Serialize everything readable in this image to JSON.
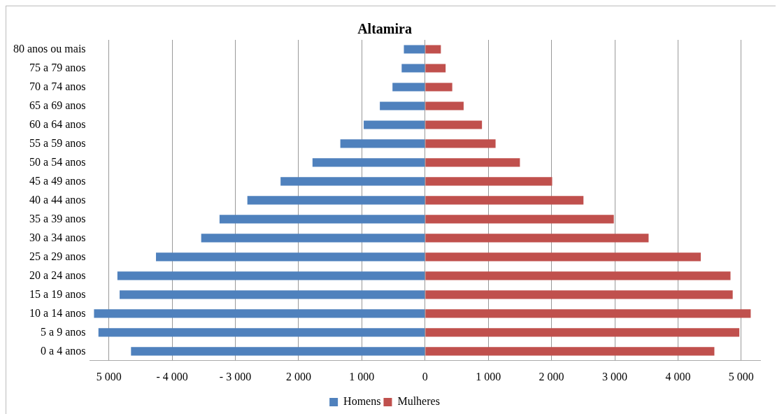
{
  "chart_data": {
    "type": "bar",
    "orientation": "horizontal",
    "stacked": true,
    "title": "Altamira",
    "categories": [
      "80 anos ou mais",
      "75 a 79 anos",
      "70 a 74 anos",
      "65 a 69 anos",
      "60 a 64 anos",
      "55 a 59 anos",
      "50 a 54 anos",
      "45 a 49 anos",
      "40 a 44 anos",
      "35 a 39 anos",
      "30 a 34 anos",
      "25 a 29 anos",
      "20 a 24 anos",
      "15 a 19 anos",
      "10 a 14 anos",
      "5 a 9 anos",
      "0 a 4 anos"
    ],
    "series": [
      {
        "name": "Homens",
        "color": "#4f81bd",
        "values": [
          -335,
          -370,
          -515,
          -715,
          -970,
          -1340,
          -1780,
          -2285,
          -2810,
          -3250,
          -3540,
          -4255,
          -4865,
          -4830,
          -5235,
          -5165,
          -4650
        ]
      },
      {
        "name": "Mulheres",
        "color": "#c0504d",
        "values": [
          250,
          325,
          430,
          610,
          900,
          1115,
          1500,
          2010,
          2505,
          2985,
          3535,
          4360,
          4830,
          4865,
          5150,
          4970,
          4575
        ]
      }
    ],
    "xlim": [
      -5300,
      5300
    ],
    "xticks": [
      {
        "value": -5000,
        "label": "5 000"
      },
      {
        "value": -4000,
        "label": "- 4 000"
      },
      {
        "value": -3000,
        "label": "- 3 000"
      },
      {
        "value": -2000,
        "label": "2 000"
      },
      {
        "value": -1000,
        "label": "1 000"
      },
      0,
      {
        "value": 1000,
        "label": "1 000"
      },
      {
        "value": 2000,
        "label": "2 000"
      },
      {
        "value": 3000,
        "label": "3 000"
      },
      {
        "value": 4000,
        "label": "4 000"
      },
      {
        "value": 5000,
        "label": "5 000"
      }
    ],
    "grid": "x",
    "legend": "bottom"
  }
}
